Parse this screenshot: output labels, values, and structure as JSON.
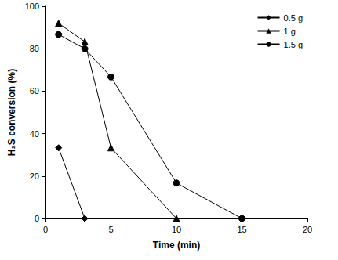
{
  "chart_data": {
    "type": "line",
    "x_label": "Time (min)",
    "y_label": "H₂S conversion (%)",
    "series": [
      {
        "name": "0.5 g",
        "color": "#000000",
        "marker": "diamond",
        "x": [
          1,
          3
        ],
        "values": [
          33.3,
          0
        ]
      },
      {
        "name": "1 g",
        "color": "#000000",
        "marker": "triangle",
        "x": [
          1,
          3,
          5,
          10
        ],
        "values": [
          92,
          83.3,
          33.3,
          0
        ]
      },
      {
        "name": "1.5 g",
        "color": "#000000",
        "marker": "circle",
        "x": [
          1,
          3,
          5,
          10,
          15
        ],
        "values": [
          86.7,
          80,
          66.7,
          16.7,
          0
        ]
      }
    ],
    "xlim": [
      0,
      20
    ],
    "xticks": [
      0,
      5,
      10,
      15,
      20
    ],
    "ylim": [
      0,
      100
    ],
    "yticks": [
      0,
      20,
      40,
      60,
      80,
      100
    ],
    "grid": false,
    "legend": "upper right"
  }
}
